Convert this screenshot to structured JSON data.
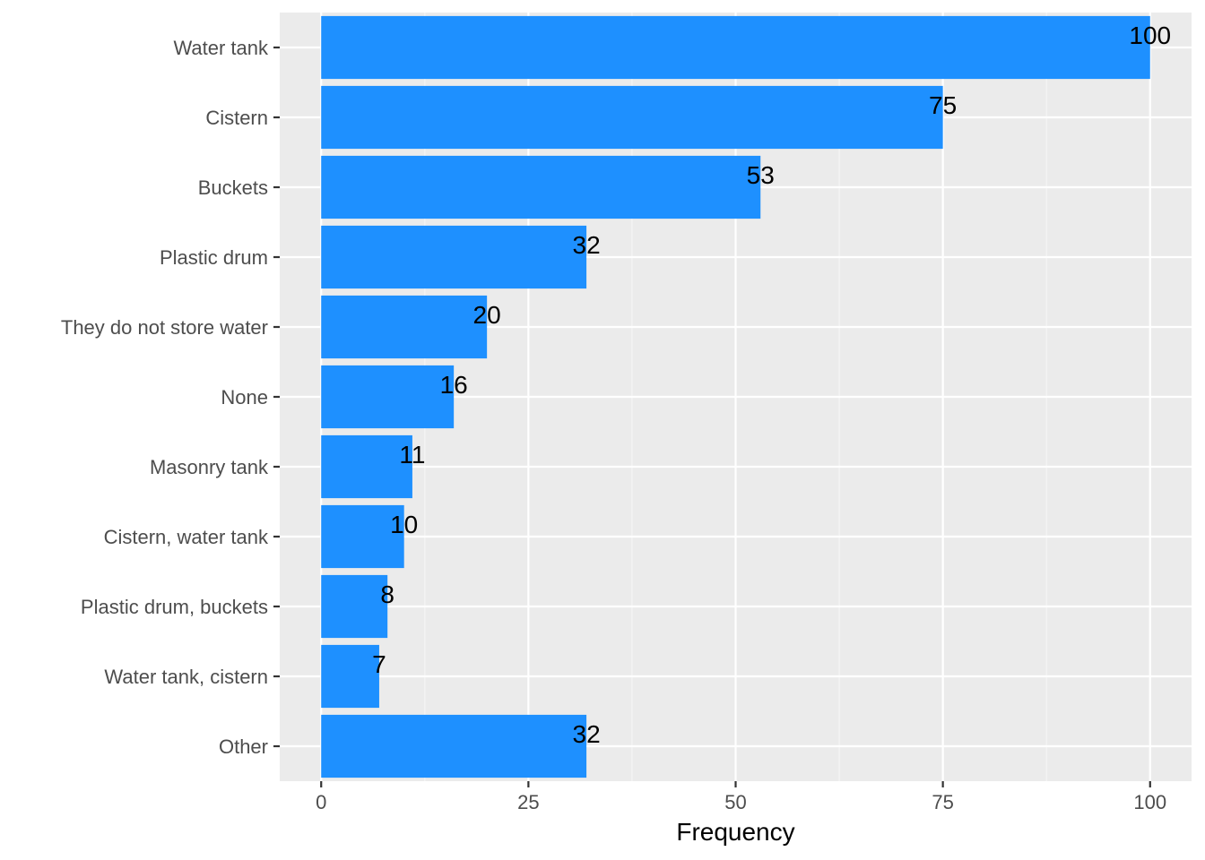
{
  "chart_data": {
    "type": "bar",
    "orientation": "horizontal",
    "categories": [
      "Water tank",
      "Cistern",
      "Buckets",
      "Plastic drum",
      "They do not store water",
      "None",
      "Masonry tank",
      "Cistern, water tank",
      "Plastic drum, buckets",
      "Water tank, cistern",
      "Other"
    ],
    "values": [
      100,
      75,
      53,
      32,
      20,
      16,
      11,
      10,
      8,
      7,
      32
    ],
    "data_labels": [
      "100",
      "75",
      "53",
      "32",
      "20",
      "16",
      "11",
      "10",
      "8",
      "7",
      "32"
    ],
    "xlabel": "Frequency",
    "ylabel": "",
    "title": "",
    "xlim": [
      -5,
      105
    ],
    "x_ticks": [
      0,
      25,
      50,
      75,
      100
    ],
    "x_tick_labels": [
      "0",
      "25",
      "50",
      "75",
      "100"
    ],
    "grid": true,
    "legend": "none",
    "colors": {
      "bar": "#1e90ff",
      "panel_background": "#ebebeb",
      "grid_major": "#ffffff",
      "grid_minor": "#f5f5f5",
      "tick_text": "#4d4d4d",
      "axis_title": "#000000",
      "data_label": "#000000"
    }
  }
}
